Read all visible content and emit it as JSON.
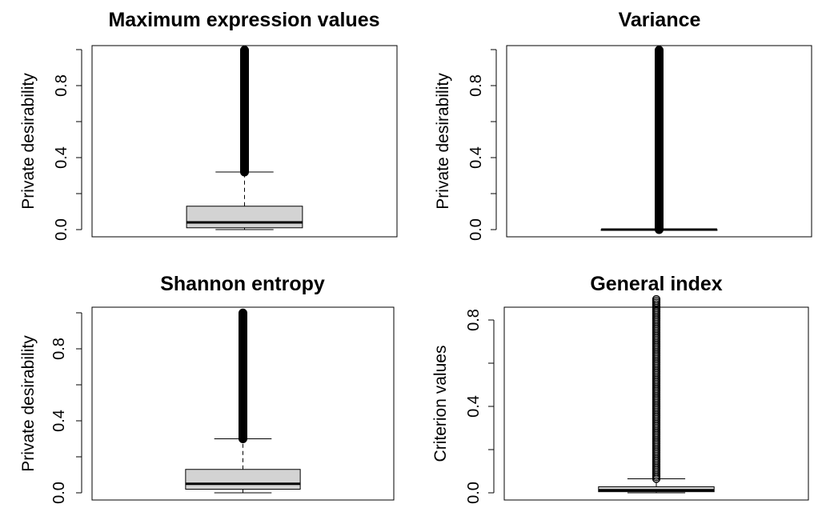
{
  "chart_data": [
    {
      "type": "boxplot",
      "title": "Maximum expression values",
      "ylabel": "Private desirability",
      "ylim": [
        0,
        1
      ],
      "yticks": [
        0.0,
        0.2,
        0.4,
        0.6,
        0.8,
        1.0
      ],
      "ytick_labels": [
        "0.0",
        "",
        "0.4",
        "",
        "0.8",
        ""
      ],
      "box": {
        "whisker_low": 0.0,
        "q1": 0.01,
        "median": 0.04,
        "q3": 0.13,
        "whisker_high": 0.32
      },
      "outliers_range": [
        0.32,
        1.0
      ]
    },
    {
      "type": "boxplot",
      "title": "Variance",
      "ylabel": "Private desirability",
      "ylim": [
        0,
        1
      ],
      "yticks": [
        0.0,
        0.2,
        0.4,
        0.6,
        0.8,
        1.0
      ],
      "ytick_labels": [
        "0.0",
        "",
        "0.4",
        "",
        "0.8",
        ""
      ],
      "box": {
        "whisker_low": 0.0,
        "q1": 0.0,
        "median": 0.0,
        "q3": 0.0,
        "whisker_high": 0.0
      },
      "outliers_range": [
        0.0,
        1.0
      ]
    },
    {
      "type": "boxplot",
      "title": "Shannon entropy",
      "ylabel": "Private desirability",
      "ylim": [
        0,
        1
      ],
      "yticks": [
        0.0,
        0.2,
        0.4,
        0.6,
        0.8,
        1.0
      ],
      "ytick_labels": [
        "0.0",
        "",
        "0.4",
        "",
        "0.8",
        ""
      ],
      "box": {
        "whisker_low": 0.0,
        "q1": 0.02,
        "median": 0.05,
        "q3": 0.13,
        "whisker_high": 0.3
      },
      "outliers_range": [
        0.3,
        1.0
      ]
    },
    {
      "type": "boxplot",
      "title": "General index",
      "ylabel": "Criterion values",
      "ylim": [
        0,
        0.9
      ],
      "yticks": [
        0.0,
        0.2,
        0.4,
        0.6,
        0.8
      ],
      "ytick_labels": [
        "0.0",
        "",
        "0.4",
        "",
        "0.8"
      ],
      "box": {
        "whisker_low": 0.0,
        "q1": 0.005,
        "median": 0.012,
        "q3": 0.028,
        "whisker_high": 0.065
      },
      "outliers_range": [
        0.065,
        0.9
      ]
    }
  ]
}
